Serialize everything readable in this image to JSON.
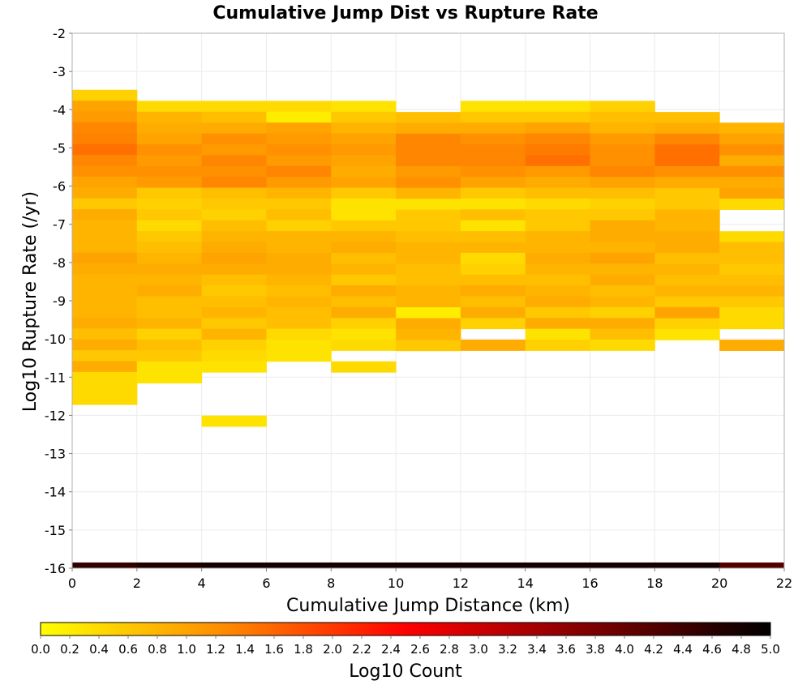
{
  "chart_data": {
    "type": "heatmap",
    "title": "Cumulative Jump Dist vs Rupture Rate",
    "xlabel": "Cumulative Jump Distance (km)",
    "ylabel": "Log10 Rupture Rate (/yr)",
    "xlim": [
      0,
      22
    ],
    "ylim": [
      -16,
      -2
    ],
    "x_ticks": [
      "0",
      "2",
      "4",
      "6",
      "8",
      "10",
      "12",
      "14",
      "16",
      "18",
      "20",
      "22"
    ],
    "y_ticks": [
      "-2",
      "-3",
      "-4",
      "-5",
      "-6",
      "-7",
      "-8",
      "-9",
      "-10",
      "-11",
      "-12",
      "-13",
      "-14",
      "-15",
      "-16"
    ],
    "x_bin_width": 2,
    "y_bin_height": 0.284,
    "grid": true,
    "colorbar": {
      "label": "Log10 Count",
      "range": [
        0,
        5
      ],
      "ticks": [
        "0.0",
        "0.2",
        "0.4",
        "0.6",
        "0.8",
        "1.0",
        "1.2",
        "1.4",
        "1.6",
        "1.8",
        "2.0",
        "2.2",
        "2.4",
        "2.6",
        "2.8",
        "3.0",
        "3.2",
        "3.4",
        "3.6",
        "3.8",
        "4.0",
        "4.2",
        "4.4",
        "4.6",
        "4.8",
        "5.0"
      ],
      "colors": [
        "#ffff00",
        "#ff8c00",
        "#ff0000",
        "#800000",
        "#000000"
      ],
      "placement": "bottom"
    },
    "columns": [
      {
        "x": 0,
        "y_top": -3.48,
        "log10_counts": [
          0.5,
          1.0,
          1.1,
          1.3,
          1.35,
          1.5,
          1.3,
          1.2,
          1.0,
          0.9,
          0.6,
          0.9,
          0.8,
          0.8,
          0.8,
          1.0,
          0.9,
          0.8,
          0.8,
          0.8,
          0.8,
          0.9,
          0.7,
          0.9,
          0.6,
          0.9,
          0.4,
          0.4,
          0.4
        ]
      },
      {
        "x": 2,
        "y_top": -3.77,
        "log10_counts": [
          0.4,
          0.8,
          0.9,
          1.0,
          1.2,
          1.1,
          1.2,
          1.1,
          0.6,
          0.5,
          0.6,
          0.4,
          0.6,
          0.7,
          0.8,
          0.9,
          0.8,
          0.9,
          0.7,
          0.7,
          0.8,
          0.5,
          0.7,
          0.6,
          0.3,
          0.3
        ]
      },
      {
        "x": 4,
        "y_top": -3.77,
        "log10_counts": [
          0.4,
          0.7,
          0.9,
          1.2,
          1.1,
          1.3,
          1.2,
          1.3,
          0.7,
          0.6,
          0.5,
          0.7,
          0.8,
          0.9,
          1.0,
          0.9,
          0.7,
          0.6,
          0.7,
          0.8,
          0.6,
          0.8,
          0.5,
          0.4,
          0.3,
          null,
          null,
          null,
          null,
          0.3
        ]
      },
      {
        "x": 6,
        "y_top": -3.77,
        "log10_counts": [
          0.4,
          0.2,
          1.0,
          1.1,
          1.2,
          1.1,
          1.3,
          1.1,
          0.8,
          0.6,
          0.7,
          0.5,
          0.8,
          0.8,
          0.9,
          0.9,
          0.8,
          0.7,
          0.8,
          0.7,
          0.7,
          0.4,
          0.3,
          0.3
        ]
      },
      {
        "x": 8,
        "y_top": -3.77,
        "log10_counts": [
          0.3,
          0.6,
          0.8,
          1.0,
          1.1,
          1.0,
          0.9,
          1.0,
          0.6,
          0.3,
          0.3,
          0.6,
          0.8,
          0.9,
          0.7,
          0.8,
          0.6,
          0.9,
          0.7,
          0.9,
          0.5,
          0.3,
          0.4,
          null,
          0.4
        ]
      },
      {
        "x": 10,
        "y_top": -4.06,
        "log10_counts": [
          0.7,
          0.9,
          1.3,
          1.3,
          1.3,
          1.1,
          1.2,
          0.8,
          0.3,
          0.6,
          0.6,
          0.7,
          0.8,
          0.8,
          0.7,
          0.7,
          0.8,
          0.8,
          0.2,
          0.9,
          0.8,
          0.6
        ]
      },
      {
        "x": 12,
        "y_top": -3.77,
        "log10_counts": [
          0.3,
          0.6,
          0.9,
          1.2,
          1.3,
          1.3,
          1.2,
          1.0,
          0.6,
          0.3,
          0.7,
          0.3,
          0.7,
          0.8,
          0.4,
          0.5,
          0.7,
          0.9,
          0.7,
          0.9,
          0.5,
          null,
          0.9
        ]
      },
      {
        "x": 14,
        "y_top": -3.77,
        "log10_counts": [
          0.3,
          0.6,
          1.0,
          1.3,
          1.4,
          1.5,
          1.1,
          0.9,
          0.7,
          0.4,
          0.6,
          0.6,
          0.8,
          0.8,
          0.9,
          0.8,
          0.7,
          0.8,
          0.9,
          0.6,
          0.9,
          0.3,
          0.5
        ]
      },
      {
        "x": 16,
        "y_top": -3.77,
        "log10_counts": [
          0.5,
          0.7,
          0.8,
          1.1,
          1.2,
          1.2,
          1.3,
          1.0,
          0.7,
          0.5,
          0.6,
          0.9,
          0.9,
          0.8,
          1.0,
          0.8,
          0.9,
          0.7,
          0.8,
          0.5,
          0.9,
          0.7,
          0.4
        ]
      },
      {
        "x": 18,
        "y_top": -4.06,
        "log10_counts": [
          0.7,
          0.9,
          1.3,
          1.5,
          1.5,
          1.2,
          0.9,
          0.6,
          0.6,
          0.8,
          0.8,
          0.9,
          0.9,
          0.7,
          0.8,
          0.7,
          0.8,
          0.6,
          1.0,
          0.5,
          0.3
        ]
      },
      {
        "x": 20,
        "y_top": -4.34,
        "log10_counts": [
          0.8,
          1.0,
          1.2,
          0.9,
          1.2,
          0.9,
          1.0,
          0.4,
          null,
          null,
          0.4,
          0.7,
          0.7,
          0.6,
          0.7,
          0.8,
          0.6,
          0.4,
          0.4,
          null,
          0.9
        ]
      }
    ],
    "bottom_row": {
      "y_bottom": -16,
      "y_top": -15.85,
      "log10_counts": [
        4.5,
        4.7,
        4.8,
        4.8,
        4.8,
        4.8,
        4.8,
        4.8,
        4.8,
        4.8,
        4.2
      ]
    }
  }
}
